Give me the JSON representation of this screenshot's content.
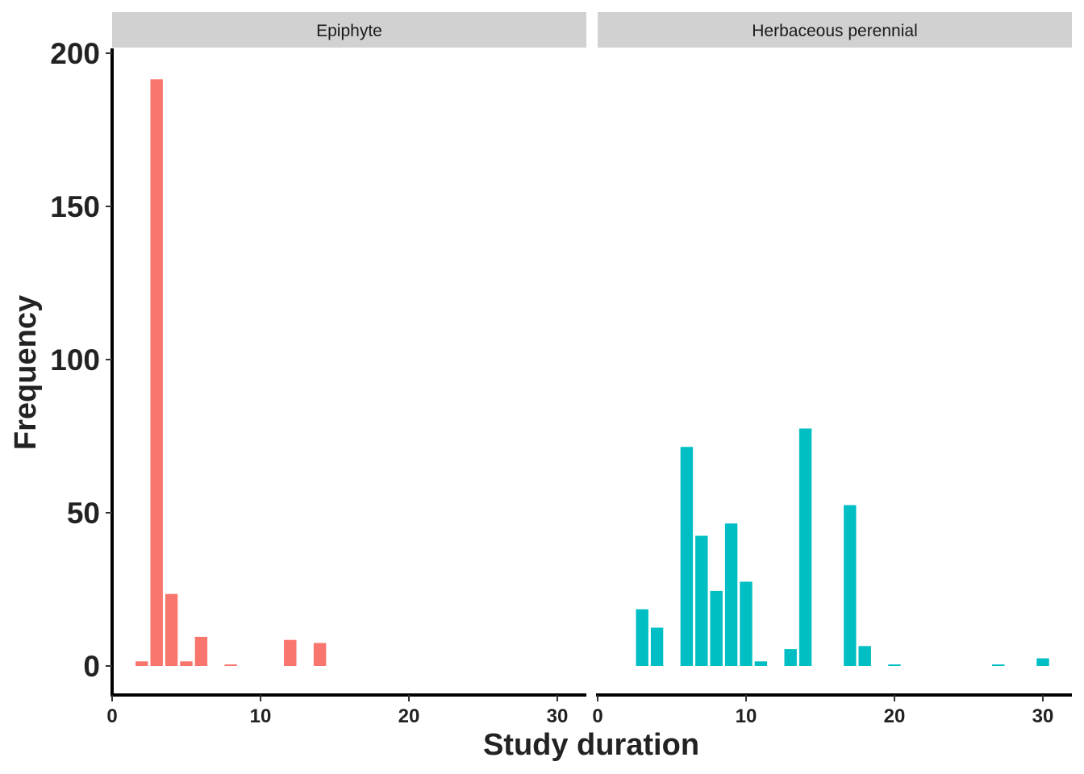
{
  "chart_data": {
    "type": "bar",
    "xlabel": "Study duration",
    "ylabel": "Frequency",
    "ylim": [
      -9,
      200
    ],
    "xlim": [
      0,
      32
    ],
    "y_ticks": [
      "0",
      "50",
      "100",
      "150",
      "200"
    ],
    "x_ticks": [
      "0",
      "10",
      "20",
      "30"
    ],
    "grid": false,
    "facets": [
      {
        "name": "Epiphyte",
        "color": "#F8766D",
        "x": [
          2,
          3,
          4,
          5,
          6,
          8,
          12,
          14
        ],
        "values": [
          1.5,
          191.5,
          23.5,
          1.5,
          9.5,
          0.5,
          8.5,
          7.5
        ]
      },
      {
        "name": "Herbaceous perennial",
        "color": "#00BFC4",
        "x": [
          3,
          4,
          6,
          7,
          8,
          9,
          10,
          11,
          13,
          14,
          17,
          18,
          20,
          27,
          30
        ],
        "values": [
          18.5,
          12.5,
          71.5,
          42.5,
          24.5,
          46.5,
          27.5,
          1.5,
          5.5,
          77.5,
          52.5,
          6.5,
          0.5,
          0.5,
          2.5
        ]
      }
    ]
  }
}
